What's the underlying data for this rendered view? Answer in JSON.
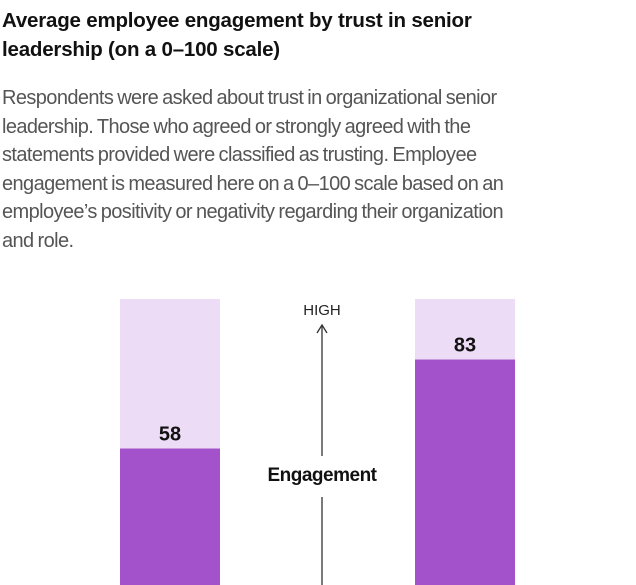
{
  "title_lines": [
    "Average employee engagement by trust in senior",
    "leadership (on a 0–100 scale)"
  ],
  "subtitle_lines": [
    "Respondents were asked about trust in organizational senior",
    "leadership. Those who agreed or strongly agreed with the",
    "statements provided were classified as trusting. Employee",
    "engagement is measured here on a 0–100 scale based on an",
    "employee’s positivity or negativity regarding their organization",
    "and role."
  ],
  "chart_data": {
    "type": "bar",
    "title": "Average employee engagement by trust in senior leadership (on a 0–100 scale)",
    "values": [
      58,
      83
    ],
    "ylim": [
      0,
      100
    ],
    "axis_label": "Engagement",
    "axis_high_label": "HIGH",
    "grid": false,
    "colors": {
      "fill": "#a452cc",
      "track": "#eddcf5",
      "text": "#111111"
    }
  }
}
